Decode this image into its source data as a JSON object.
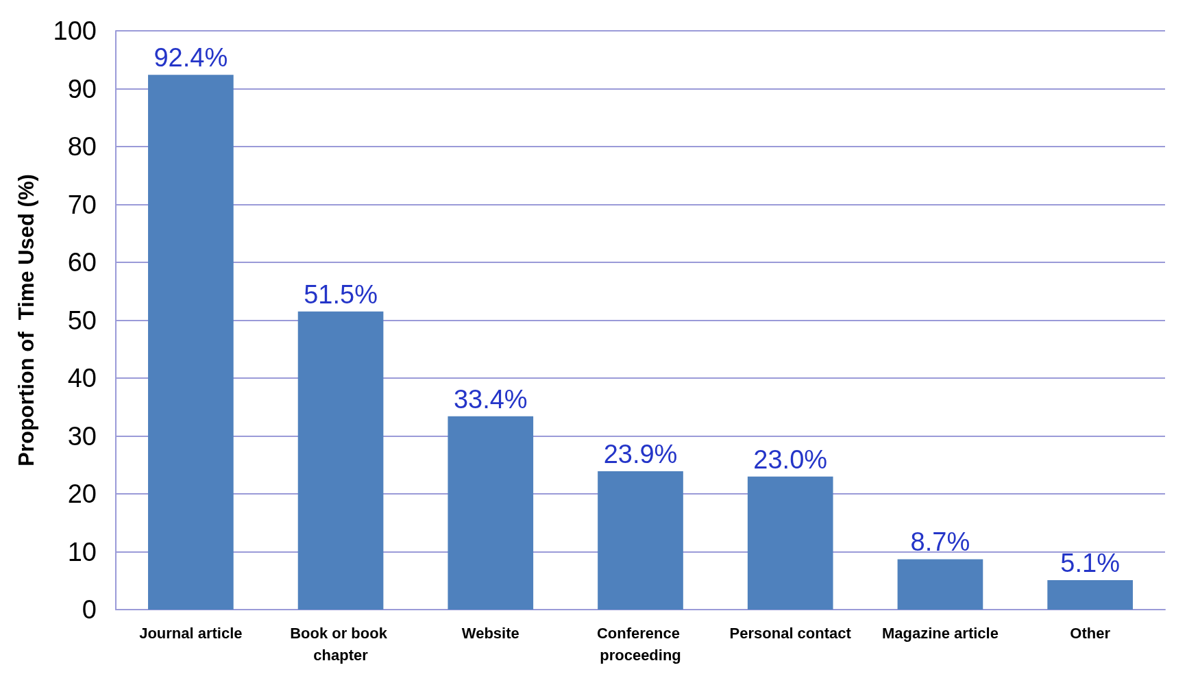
{
  "chart_data": {
    "type": "bar",
    "ylabel": "Proportion of  Time Used (%)",
    "categories": [
      "Journal article",
      "Book or book chapter",
      "Website",
      "Conference proceeding",
      "Personal contact",
      "Magazine article",
      "Other"
    ],
    "values": [
      92.4,
      51.5,
      33.4,
      23.9,
      23.0,
      8.7,
      5.1
    ],
    "value_labels": [
      "92.4%",
      "51.5%",
      "33.4%",
      "23.9%",
      "23.0%",
      "8.7%",
      "5.1%"
    ],
    "color": "#4f81bd",
    "ylim": [
      0,
      100
    ],
    "yticks": [
      0,
      10,
      20,
      30,
      40,
      50,
      60,
      70,
      80,
      90,
      100
    ],
    "grid": "y"
  }
}
